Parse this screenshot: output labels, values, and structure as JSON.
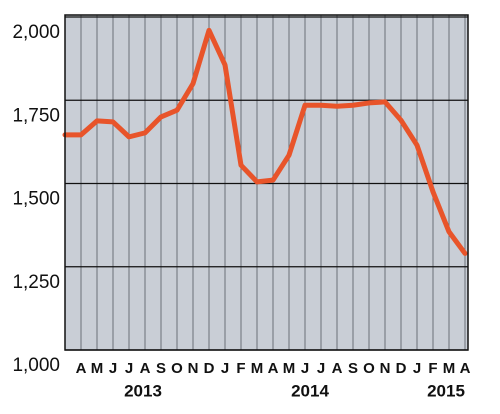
{
  "chart_data": {
    "type": "line",
    "categories": [
      null,
      "A",
      "M",
      "J",
      "J",
      "A",
      "S",
      "O",
      "N",
      "D",
      "J",
      "F",
      "M",
      "A",
      "M",
      "J",
      "J",
      "A",
      "S",
      "O",
      "N",
      "D",
      "J",
      "F",
      "M",
      "A"
    ],
    "years": [
      "2013",
      "2014",
      "2015"
    ],
    "series": [
      {
        "color": "#e8542a",
        "values": [
          1646,
          1646,
          1688,
          1685,
          1640,
          1652,
          1700,
          1720,
          1800,
          1960,
          1856,
          1555,
          1505,
          1510,
          1585,
          1735,
          1735,
          1732,
          1735,
          1742,
          1745,
          1690,
          1615,
          1475,
          1355,
          1290
        ]
      }
    ],
    "ylim": [
      1000,
      2000
    ],
    "yticks": [
      {
        "value": 1000,
        "label": "1,000"
      },
      {
        "value": 1250,
        "label": "1,250"
      },
      {
        "value": 1500,
        "label": "1,500"
      },
      {
        "value": 1750,
        "label": "1,750"
      },
      {
        "value": 2000,
        "label": "2,000"
      }
    ],
    "grid": true
  }
}
